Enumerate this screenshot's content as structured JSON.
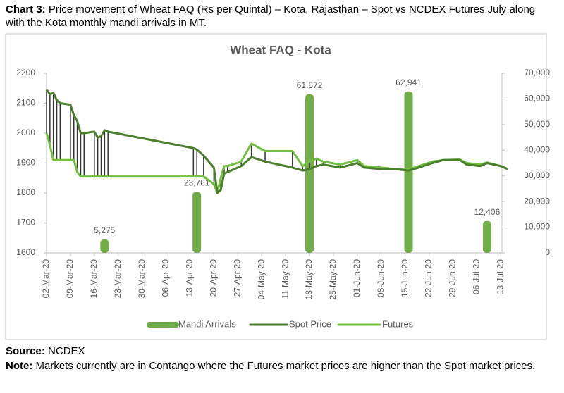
{
  "header": {
    "label": "Chart 3:",
    "text": "Price movement of Wheat FAQ (Rs per Quintal) – Kota, Rajasthan – Spot vs NCDEX Futures July along with the Kota monthly mandi arrivals in MT."
  },
  "chart_data": {
    "type": "combo",
    "title": "Wheat FAQ - Kota",
    "x": [
      "02-Mar-20",
      "03-Mar-20",
      "04-Mar-20",
      "05-Mar-20",
      "06-Mar-20",
      "09-Mar-20",
      "10-Mar-20",
      "11-Mar-20",
      "12-Mar-20",
      "13-Mar-20",
      "16-Mar-20",
      "17-Mar-20",
      "18-Mar-20",
      "19-Mar-20",
      "20-Mar-20",
      "14-Apr-20",
      "15-Apr-20",
      "17-Apr-20",
      "20-Apr-20",
      "21-Apr-20",
      "22-Apr-20",
      "23-Apr-20",
      "24-Apr-20",
      "28-Apr-20",
      "01-May-20",
      "05-May-20",
      "13-May-20",
      "16-May-20",
      "18-May-20",
      "20-May-20",
      "22-May-20",
      "27-May-20",
      "01-Jun-20",
      "03-Jun-20",
      "08-Jun-20",
      "12-Jun-20",
      "16-Jun-20",
      "19-Jun-20",
      "23-Jun-20",
      "26-Jun-20",
      "01-Jul-20",
      "03-Jul-20",
      "07-Jul-20",
      "09-Jul-20",
      "13-Jul-20",
      "15-Jul-20"
    ],
    "series": [
      {
        "name": "Spot Price",
        "color": "#4a7f2c",
        "values": [
          2145,
          2130,
          2135,
          2110,
          2100,
          2095,
          2060,
          2040,
          2000,
          2000,
          2005,
          1985,
          1990,
          2010,
          2005,
          1950,
          1945,
          1925,
          1885,
          1800,
          1810,
          1865,
          1870,
          1890,
          1920,
          1905,
          1885,
          1875,
          1880,
          1890,
          1895,
          1885,
          1900,
          1885,
          1880,
          1880,
          1875,
          1885,
          1900,
          1910,
          1910,
          1895,
          1890,
          1900,
          1890,
          1880
        ]
      },
      {
        "name": "Futures",
        "color": "#72bf3f",
        "values": [
          2000,
          1960,
          1910,
          1910,
          1910,
          1910,
          1910,
          1870,
          1855,
          1855,
          1855,
          1855,
          1855,
          1855,
          1855,
          1855,
          1855,
          1855,
          1830,
          1800,
          1850,
          1890,
          1890,
          1905,
          1965,
          1940,
          1940,
          1890,
          1905,
          1915,
          1905,
          1895,
          1910,
          1890,
          1885,
          1880,
          1878,
          1890,
          1905,
          1910,
          1912,
          1900,
          1895,
          1902,
          1890,
          1880
        ]
      },
      {
        "name": "Mandi Arrivals",
        "color": "#70ad47",
        "axis": "y2",
        "values": [
          null,
          null,
          null,
          null,
          null,
          null,
          null,
          null,
          null,
          null,
          null,
          null,
          null,
          5275,
          null,
          null,
          23761,
          null,
          null,
          null,
          null,
          null,
          null,
          null,
          null,
          null,
          null,
          null,
          61872,
          null,
          null,
          null,
          null,
          null,
          null,
          null,
          62941,
          null,
          null,
          null,
          null,
          null,
          null,
          12406,
          null,
          null
        ],
        "value_labels": [
          null,
          null,
          null,
          null,
          null,
          null,
          null,
          null,
          null,
          null,
          null,
          null,
          null,
          "5,275",
          null,
          null,
          "23,761",
          null,
          null,
          null,
          null,
          null,
          null,
          null,
          null,
          null,
          null,
          null,
          "61,872",
          null,
          null,
          null,
          null,
          null,
          null,
          null,
          "62,941",
          null,
          null,
          null,
          null,
          null,
          null,
          "12,406",
          null,
          null
        ]
      }
    ],
    "high_low_color": "#333333",
    "xlim": [
      "02-Mar-20",
      "15-Jul-20"
    ],
    "xticks": [
      "02-Mar-20",
      "09-Mar-20",
      "16-Mar-20",
      "23-Mar-20",
      "30-Mar-20",
      "06-Apr-20",
      "13-Apr-20",
      "20-Apr-20",
      "27-Apr-20",
      "04-May-20",
      "11-May-20",
      "18-May-20",
      "25-May-20",
      "01-Jun-20",
      "08-Jun-20",
      "15-Jun-20",
      "22-Jun-20",
      "29-Jun-20",
      "06-Jul-20",
      "13-Jul-20"
    ],
    "ylim": [
      1600,
      2200
    ],
    "yticks": [
      1600,
      1700,
      1800,
      1900,
      2000,
      2100,
      2200
    ],
    "y2lim": [
      0,
      70000
    ],
    "y2ticks": [
      0,
      {
        "value": 10000,
        "label": "10,000"
      },
      {
        "value": 20000,
        "label": "20,000"
      },
      {
        "value": 30000,
        "label": "30,000"
      },
      {
        "value": 40000,
        "label": "40,000"
      },
      {
        "value": 50000,
        "label": "50,000"
      },
      {
        "value": 60000,
        "label": "60,000"
      },
      {
        "value": 70000,
        "label": "70,000"
      }
    ],
    "grid": false,
    "legend": "bottom"
  },
  "source": {
    "label": "Source:",
    "text": "NCDEX"
  },
  "note": {
    "label": "Note:",
    "text": "Markets currently are in Contango where the Futures market prices are higher than the Spot market prices."
  }
}
